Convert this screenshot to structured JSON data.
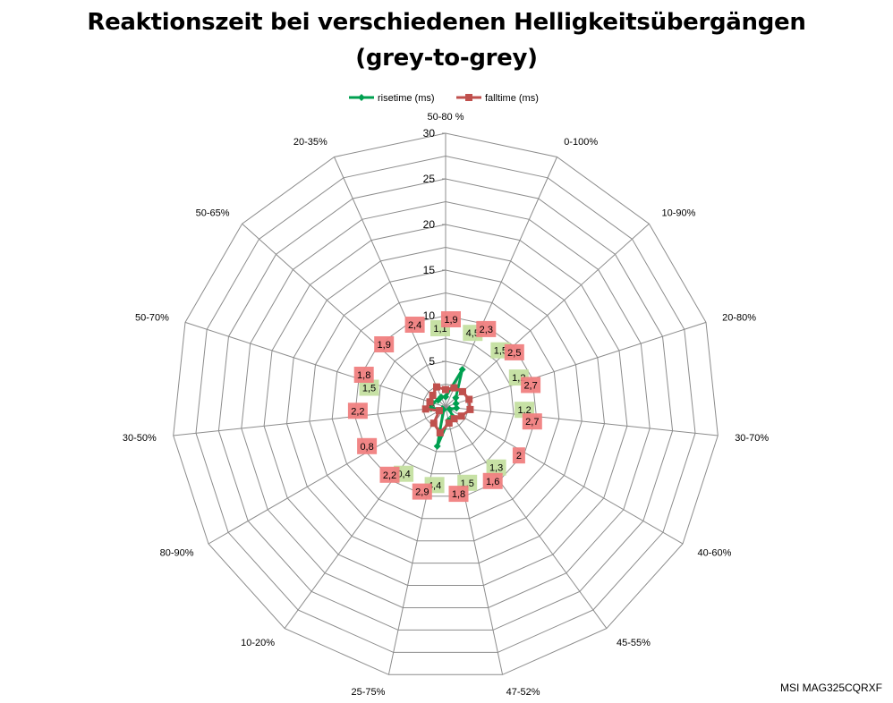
{
  "title": {
    "line1": "Reaktionszeit bei verschiedenen Helligkeitsübergängen",
    "line2": "(grey-to-grey)"
  },
  "footer": "MSI MAG325CQRXF",
  "chart_data": {
    "type": "radar",
    "categories": [
      "50-80 %",
      "0-100%",
      "10-90%",
      "20-80%",
      "30-70%",
      "40-60%",
      "45-55%",
      "47-52%",
      "25-75%",
      "10-20%",
      "80-90%",
      "30-50%",
      "50-70%",
      "50-65%",
      "20-35%"
    ],
    "r_ticks": [
      0,
      5,
      10,
      15,
      20,
      25,
      30
    ],
    "rlim": [
      0,
      30
    ],
    "grid": true,
    "legend_position": "top",
    "series": [
      {
        "name": "risetime (ms)",
        "color": "#00A050",
        "label_color": "#C4DFA0",
        "values": [
          1.1,
          4.5,
          1.5,
          1.2,
          1.2,
          0.5,
          1.3,
          1.5,
          4.4,
          0.4,
          0.4,
          1.6,
          1.5,
          1.1,
          1.2
        ],
        "labels": [
          "1,1",
          "4,5",
          "1,5",
          "1,2",
          "1,2",
          "",
          "1,3",
          "1,5",
          "4,4",
          "0,4",
          "",
          "",
          "1,5",
          "",
          ""
        ]
      },
      {
        "name": "falltime (ms)",
        "color": "#C0504D",
        "label_color": "#F08080",
        "values": [
          1.9,
          2.3,
          2.5,
          2.7,
          2.7,
          2.0,
          1.6,
          1.8,
          2.9,
          2.2,
          0.8,
          2.2,
          1.8,
          1.9,
          2.4
        ],
        "labels": [
          "1,9",
          "2,3",
          "2,5",
          "2,7",
          "2,7",
          "2",
          "1,6",
          "1,8",
          "2,9",
          "2,2",
          "0,8",
          "2,2",
          "1,8",
          "1,9",
          "2,4"
        ]
      }
    ]
  }
}
